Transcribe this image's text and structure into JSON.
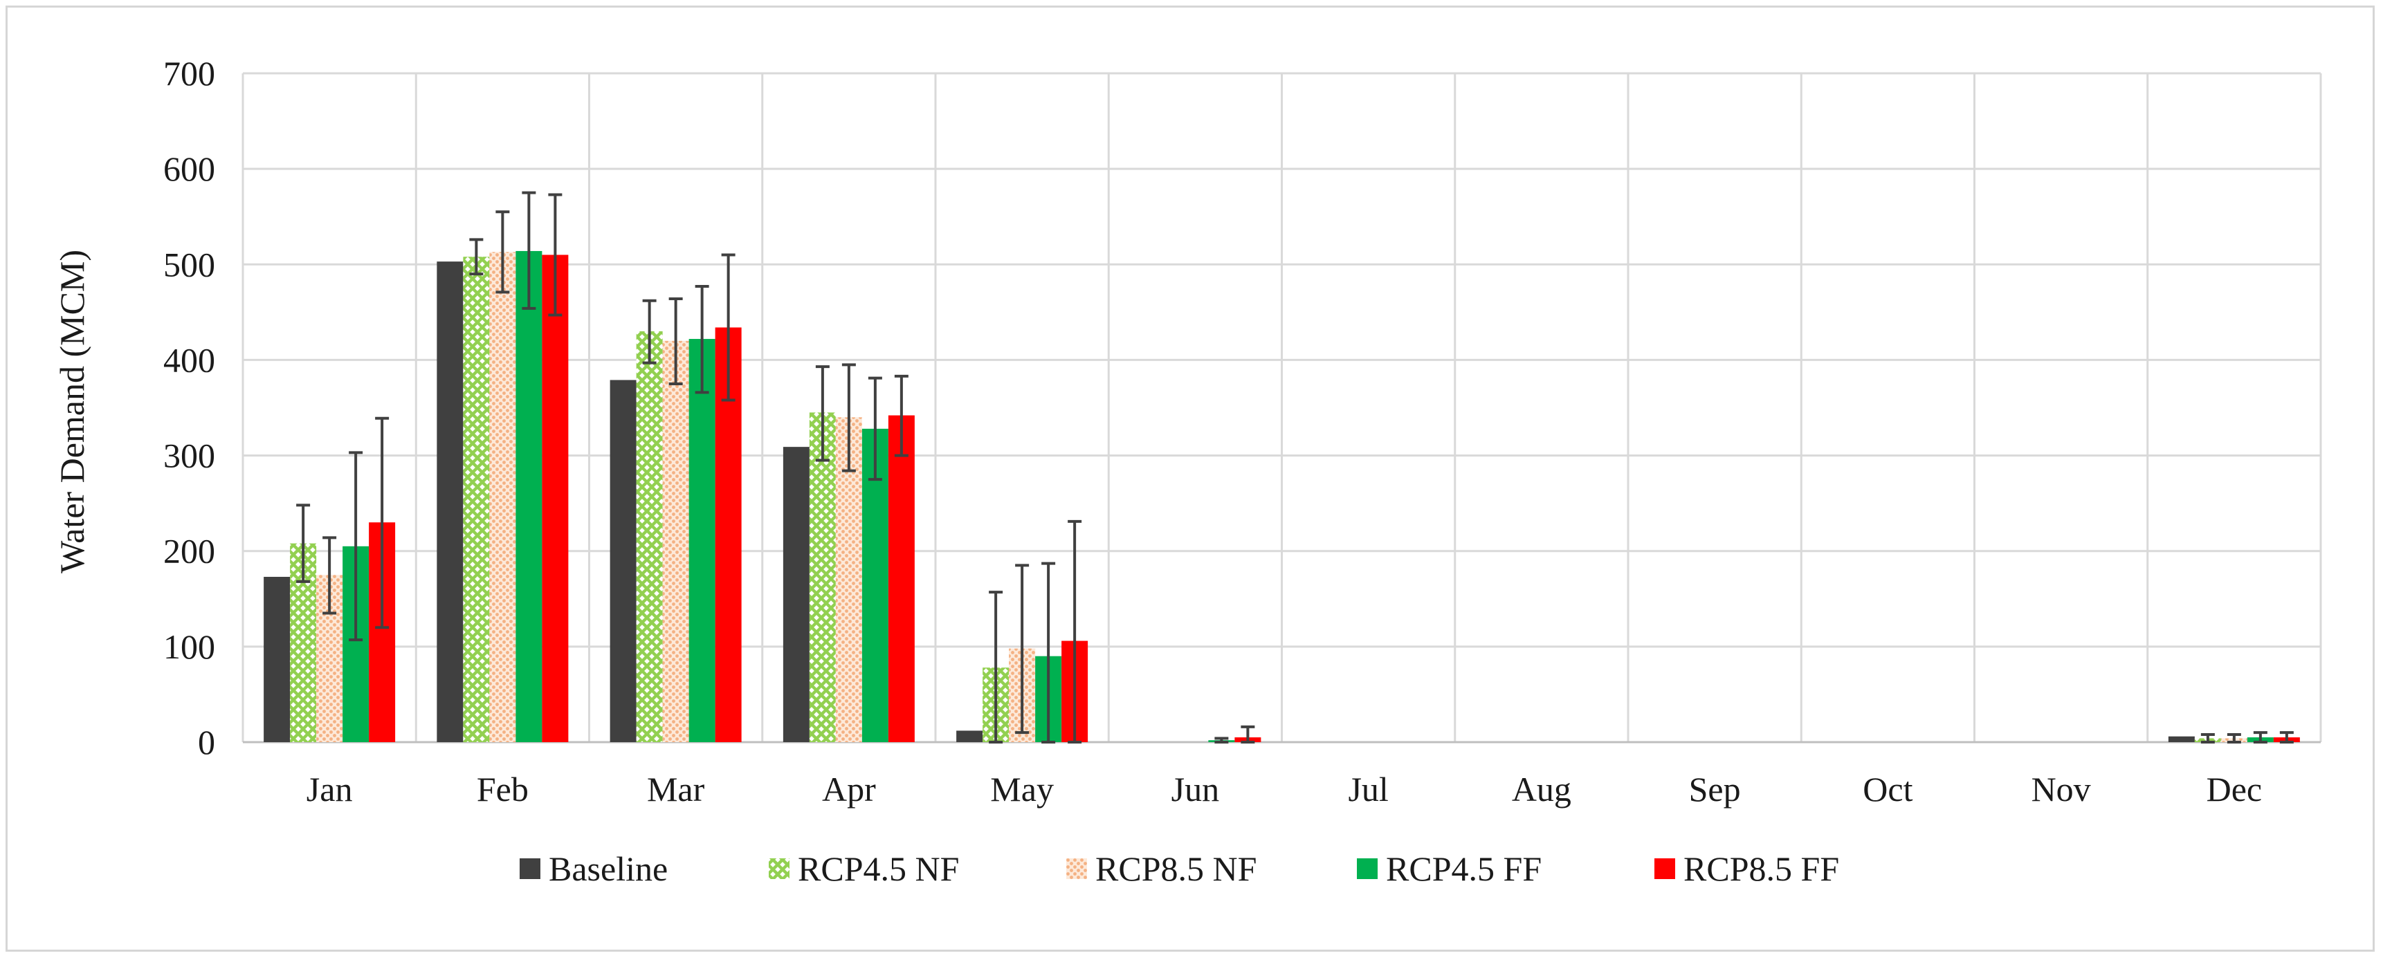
{
  "chart_data": {
    "type": "bar",
    "title": "",
    "xlabel": "",
    "ylabel": "Water Demand (MCM)",
    "ylim": [
      0,
      700
    ],
    "yticks": [
      0,
      100,
      200,
      300,
      400,
      500,
      600,
      700
    ],
    "grid": true,
    "legend_position": "bottom",
    "categories": [
      "Jan",
      "Feb",
      "Mar",
      "Apr",
      "May",
      "Jun",
      "Jul",
      "Aug",
      "Sep",
      "Oct",
      "Nov",
      "Dec"
    ],
    "series": [
      {
        "name": "Baseline",
        "color": "#404040",
        "pattern": "solid",
        "values": [
          173,
          503,
          379,
          309,
          12,
          0,
          0,
          0,
          0,
          0,
          0,
          6
        ],
        "error": null
      },
      {
        "name": "RCP4.5 NF",
        "color": "#92d050",
        "pattern": "crosshatch",
        "values": [
          208,
          508,
          430,
          345,
          78,
          0,
          0,
          0,
          0,
          0,
          0,
          4
        ],
        "error": [
          [
            168,
            248
          ],
          [
            490,
            526
          ],
          [
            397,
            462
          ],
          [
            295,
            393
          ],
          [
            0,
            157
          ],
          [
            0,
            0
          ],
          [
            0,
            0
          ],
          [
            0,
            0
          ],
          [
            0,
            0
          ],
          [
            0,
            0
          ],
          [
            0,
            0
          ],
          [
            0,
            8
          ]
        ]
      },
      {
        "name": "RCP8.5 NF",
        "color": "#f4b183",
        "pattern": "dots",
        "values": [
          175,
          513,
          420,
          340,
          98,
          0,
          0,
          0,
          0,
          0,
          0,
          4
        ],
        "error": [
          [
            135,
            214
          ],
          [
            471,
            555
          ],
          [
            375,
            464
          ],
          [
            284,
            395
          ],
          [
            10,
            185
          ],
          [
            0,
            0
          ],
          [
            0,
            0
          ],
          [
            0,
            0
          ],
          [
            0,
            0
          ],
          [
            0,
            0
          ],
          [
            0,
            0
          ],
          [
            0,
            8
          ]
        ]
      },
      {
        "name": "RCP4.5 FF",
        "color": "#00b050",
        "pattern": "solid",
        "values": [
          205,
          514,
          422,
          328,
          90,
          2,
          0,
          0,
          0,
          0,
          0,
          5
        ],
        "error": [
          [
            107,
            303
          ],
          [
            454,
            575
          ],
          [
            366,
            477
          ],
          [
            275,
            381
          ],
          [
            0,
            187
          ],
          [
            0,
            4
          ],
          [
            0,
            0
          ],
          [
            0,
            0
          ],
          [
            0,
            0
          ],
          [
            0,
            0
          ],
          [
            0,
            0
          ],
          [
            0,
            10
          ]
        ]
      },
      {
        "name": "RCP8.5 FF",
        "color": "#ff0000",
        "pattern": "solid",
        "values": [
          230,
          510,
          434,
          342,
          106,
          5,
          0,
          0,
          0,
          0,
          0,
          5
        ],
        "error": [
          [
            120,
            339
          ],
          [
            447,
            573
          ],
          [
            358,
            510
          ],
          [
            300,
            383
          ],
          [
            0,
            231
          ],
          [
            0,
            16
          ],
          [
            0,
            0
          ],
          [
            0,
            0
          ],
          [
            0,
            0
          ],
          [
            0,
            0
          ],
          [
            0,
            0
          ],
          [
            0,
            10
          ]
        ]
      }
    ]
  }
}
